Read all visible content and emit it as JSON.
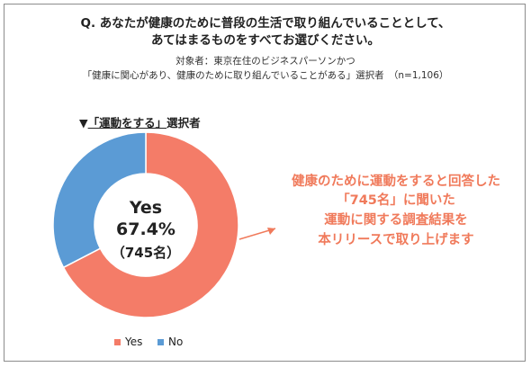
{
  "question": {
    "line1": "Q. あなたが健康のために普段の生活で取り組んでいることとして、",
    "line2": "あてはまるものをすべてお選びください。"
  },
  "target": {
    "line1": "対象者：東京在住のビジネスパーソンかつ",
    "line2": "「健康に関心があり、健康のために取り組んでいることがある」選択者　（n=1,106）"
  },
  "section": {
    "marker": "▼",
    "title": "「運動をする」",
    "suffix": "選択者"
  },
  "center": {
    "label": "Yes",
    "percent": "67.4%",
    "count": "（745名）"
  },
  "callout": {
    "line1": "健康のために運動をすると回答した",
    "line2": "「745名」に聞いた",
    "line3": "運動に関する調査結果を",
    "line4": "本リリースで取り上げます"
  },
  "colors": {
    "yes": "#f47c68",
    "no": "#5b9bd5",
    "callout": "#f07a5b"
  },
  "chart_data": {
    "type": "pie",
    "style": "donut",
    "categories": [
      "Yes",
      "No"
    ],
    "values": [
      67.4,
      32.6
    ],
    "legend": [
      "Yes",
      "No"
    ],
    "legend_position": "bottom"
  }
}
